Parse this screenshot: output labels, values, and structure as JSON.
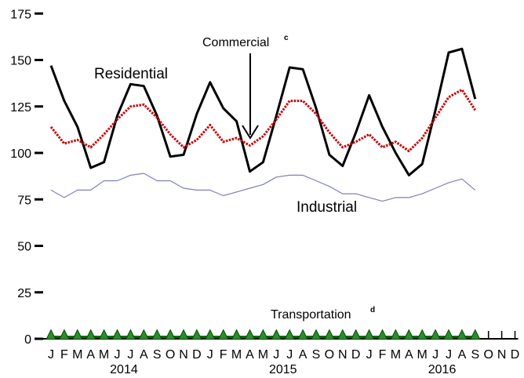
{
  "chart_data": {
    "type": "line",
    "title": "",
    "xlabel": "",
    "ylabel": "",
    "ylim": [
      0,
      175
    ],
    "yticks": [
      0,
      25,
      50,
      75,
      100,
      125,
      150,
      175
    ],
    "grid": false,
    "legend": "none",
    "month_labels": [
      "J",
      "F",
      "M",
      "A",
      "M",
      "J",
      "J",
      "A",
      "S",
      "O",
      "N",
      "D",
      "J",
      "F",
      "M",
      "A",
      "M",
      "J",
      "J",
      "A",
      "S",
      "O",
      "N",
      "D",
      "J",
      "F",
      "M",
      "A",
      "M",
      "J",
      "J",
      "A",
      "S",
      "O",
      "N",
      "D"
    ],
    "year_labels": [
      "2014",
      "2015",
      "2016"
    ],
    "annotations": {
      "residential": "Residential",
      "commercial": "Commercial",
      "commercial_sup": "c",
      "industrial": "Industrial",
      "transportation": "Transportation",
      "transportation_sup": "d"
    },
    "series": [
      {
        "key": "residential",
        "color": "#000000",
        "values": [
          147,
          128,
          114,
          92,
          95,
          120,
          137,
          136,
          120,
          98,
          99,
          121,
          138,
          124,
          117,
          90,
          95,
          120,
          146,
          145,
          124,
          99,
          93,
          111,
          131,
          114,
          100,
          88,
          94,
          123,
          154,
          156,
          129
        ]
      },
      {
        "key": "commercial",
        "color": "#cc0000",
        "values": [
          114,
          105,
          107,
          103,
          110,
          118,
          125,
          126,
          119,
          110,
          103,
          107,
          115,
          106,
          108,
          104,
          109,
          118,
          128,
          128,
          121,
          111,
          103,
          106,
          110,
          103,
          106,
          101,
          108,
          119,
          130,
          134,
          123
        ]
      },
      {
        "key": "industrial",
        "color": "#7f7fc0",
        "values": [
          80,
          76,
          80,
          80,
          85,
          85,
          88,
          89,
          85,
          85,
          81,
          80,
          80,
          77,
          79,
          81,
          83,
          87,
          88,
          88,
          85,
          82,
          78,
          78,
          76,
          74,
          76,
          76,
          78,
          81,
          84,
          86,
          80
        ]
      },
      {
        "key": "transportation",
        "color": "#006600",
        "marker_color": "#2e8b2e",
        "values": [
          1,
          1,
          1,
          1,
          1,
          1,
          1,
          1,
          1,
          1,
          1,
          1,
          1,
          1,
          1,
          1,
          1,
          1,
          1,
          1,
          1,
          1,
          1,
          1,
          1,
          1,
          1,
          1,
          1,
          1,
          1,
          1,
          1
        ]
      }
    ]
  }
}
